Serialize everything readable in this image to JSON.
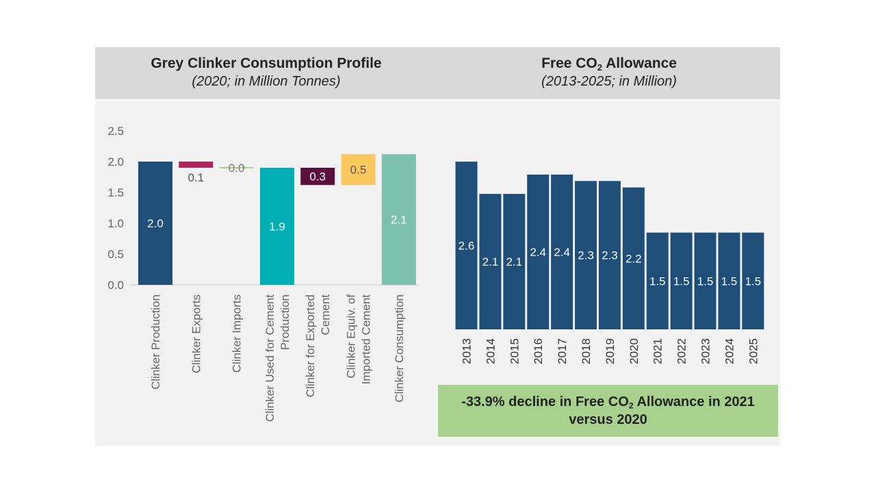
{
  "left_chart": {
    "title": "Grey Clinker Consumption Profile",
    "subtitle": "(2020; in Million Tonnes)"
  },
  "right_chart": {
    "title_pre": "Free CO",
    "title_sub": "2",
    "title_post": " Allowance",
    "subtitle": "(2013-2025; in Million)"
  },
  "callout": {
    "pre": "-33.9% decline in Free CO",
    "sub": "2",
    "post": " Allowance in 2021 versus 2020"
  },
  "colors": {
    "navy": "#1f4e79",
    "magenta": "#b0235e",
    "teal": "#00aeb3",
    "plum": "#5a0f3c",
    "gold": "#fac85f",
    "sage": "#7cc0b0",
    "import_line": "#a9d18e",
    "callout_bg": "#a9d18e"
  },
  "chart_data": [
    {
      "type": "bar",
      "subtype": "waterfall",
      "title": "Grey Clinker Consumption Profile",
      "subtitle": "(2020; in Million Tonnes)",
      "ylim": [
        0,
        2.5
      ],
      "yticks": [
        "0.0",
        "0.5",
        "1.0",
        "1.5",
        "2.0",
        "2.5"
      ],
      "categories": [
        [
          "Clinker Production"
        ],
        [
          "Clinker Exports"
        ],
        [
          "Clinker Imports"
        ],
        [
          "Clinker Used for Cement",
          "Production"
        ],
        [
          "Clinker for Exported",
          "Cement"
        ],
        [
          "Clinker Equiv. of",
          "Imported Cement"
        ],
        [
          "Clinker Consumption"
        ]
      ],
      "bars": [
        {
          "bottom": 0,
          "top": 2.0,
          "label": "2.0",
          "color": "navy",
          "label_pos": "inside"
        },
        {
          "bottom": 1.9,
          "top": 2.0,
          "label": "0.1",
          "color": "magenta",
          "label_pos": "below"
        },
        {
          "bottom": 1.9,
          "top": 1.9,
          "label": "0.0",
          "color": "import_line",
          "label_pos": "center"
        },
        {
          "bottom": 0,
          "top": 1.9,
          "label": "1.9",
          "color": "teal",
          "label_pos": "inside"
        },
        {
          "bottom": 1.62,
          "top": 1.9,
          "label": "0.3",
          "color": "plum",
          "label_pos": "inside"
        },
        {
          "bottom": 1.62,
          "top": 2.12,
          "label": "0.5",
          "color": "gold",
          "label_pos": "inside"
        },
        {
          "bottom": 0,
          "top": 2.12,
          "label": "2.1",
          "color": "sage",
          "label_pos": "inside"
        }
      ],
      "grid": false
    },
    {
      "type": "bar",
      "title": "Free CO2 Allowance",
      "subtitle": "(2013-2025; in Million)",
      "categories": [
        "2013",
        "2014",
        "2015",
        "2016",
        "2017",
        "2018",
        "2019",
        "2020",
        "2021",
        "2022",
        "2023",
        "2024",
        "2025"
      ],
      "values": [
        2.6,
        2.1,
        2.1,
        2.4,
        2.4,
        2.3,
        2.3,
        2.2,
        1.5,
        1.5,
        1.5,
        1.5,
        1.5
      ],
      "labels": [
        "2.6",
        "2.1",
        "2.1",
        "2.4",
        "2.4",
        "2.3",
        "2.3",
        "2.2",
        "1.5",
        "1.5",
        "1.5",
        "1.5",
        "1.5"
      ],
      "color": "navy",
      "y_axis_visible": false,
      "grid": false
    }
  ]
}
